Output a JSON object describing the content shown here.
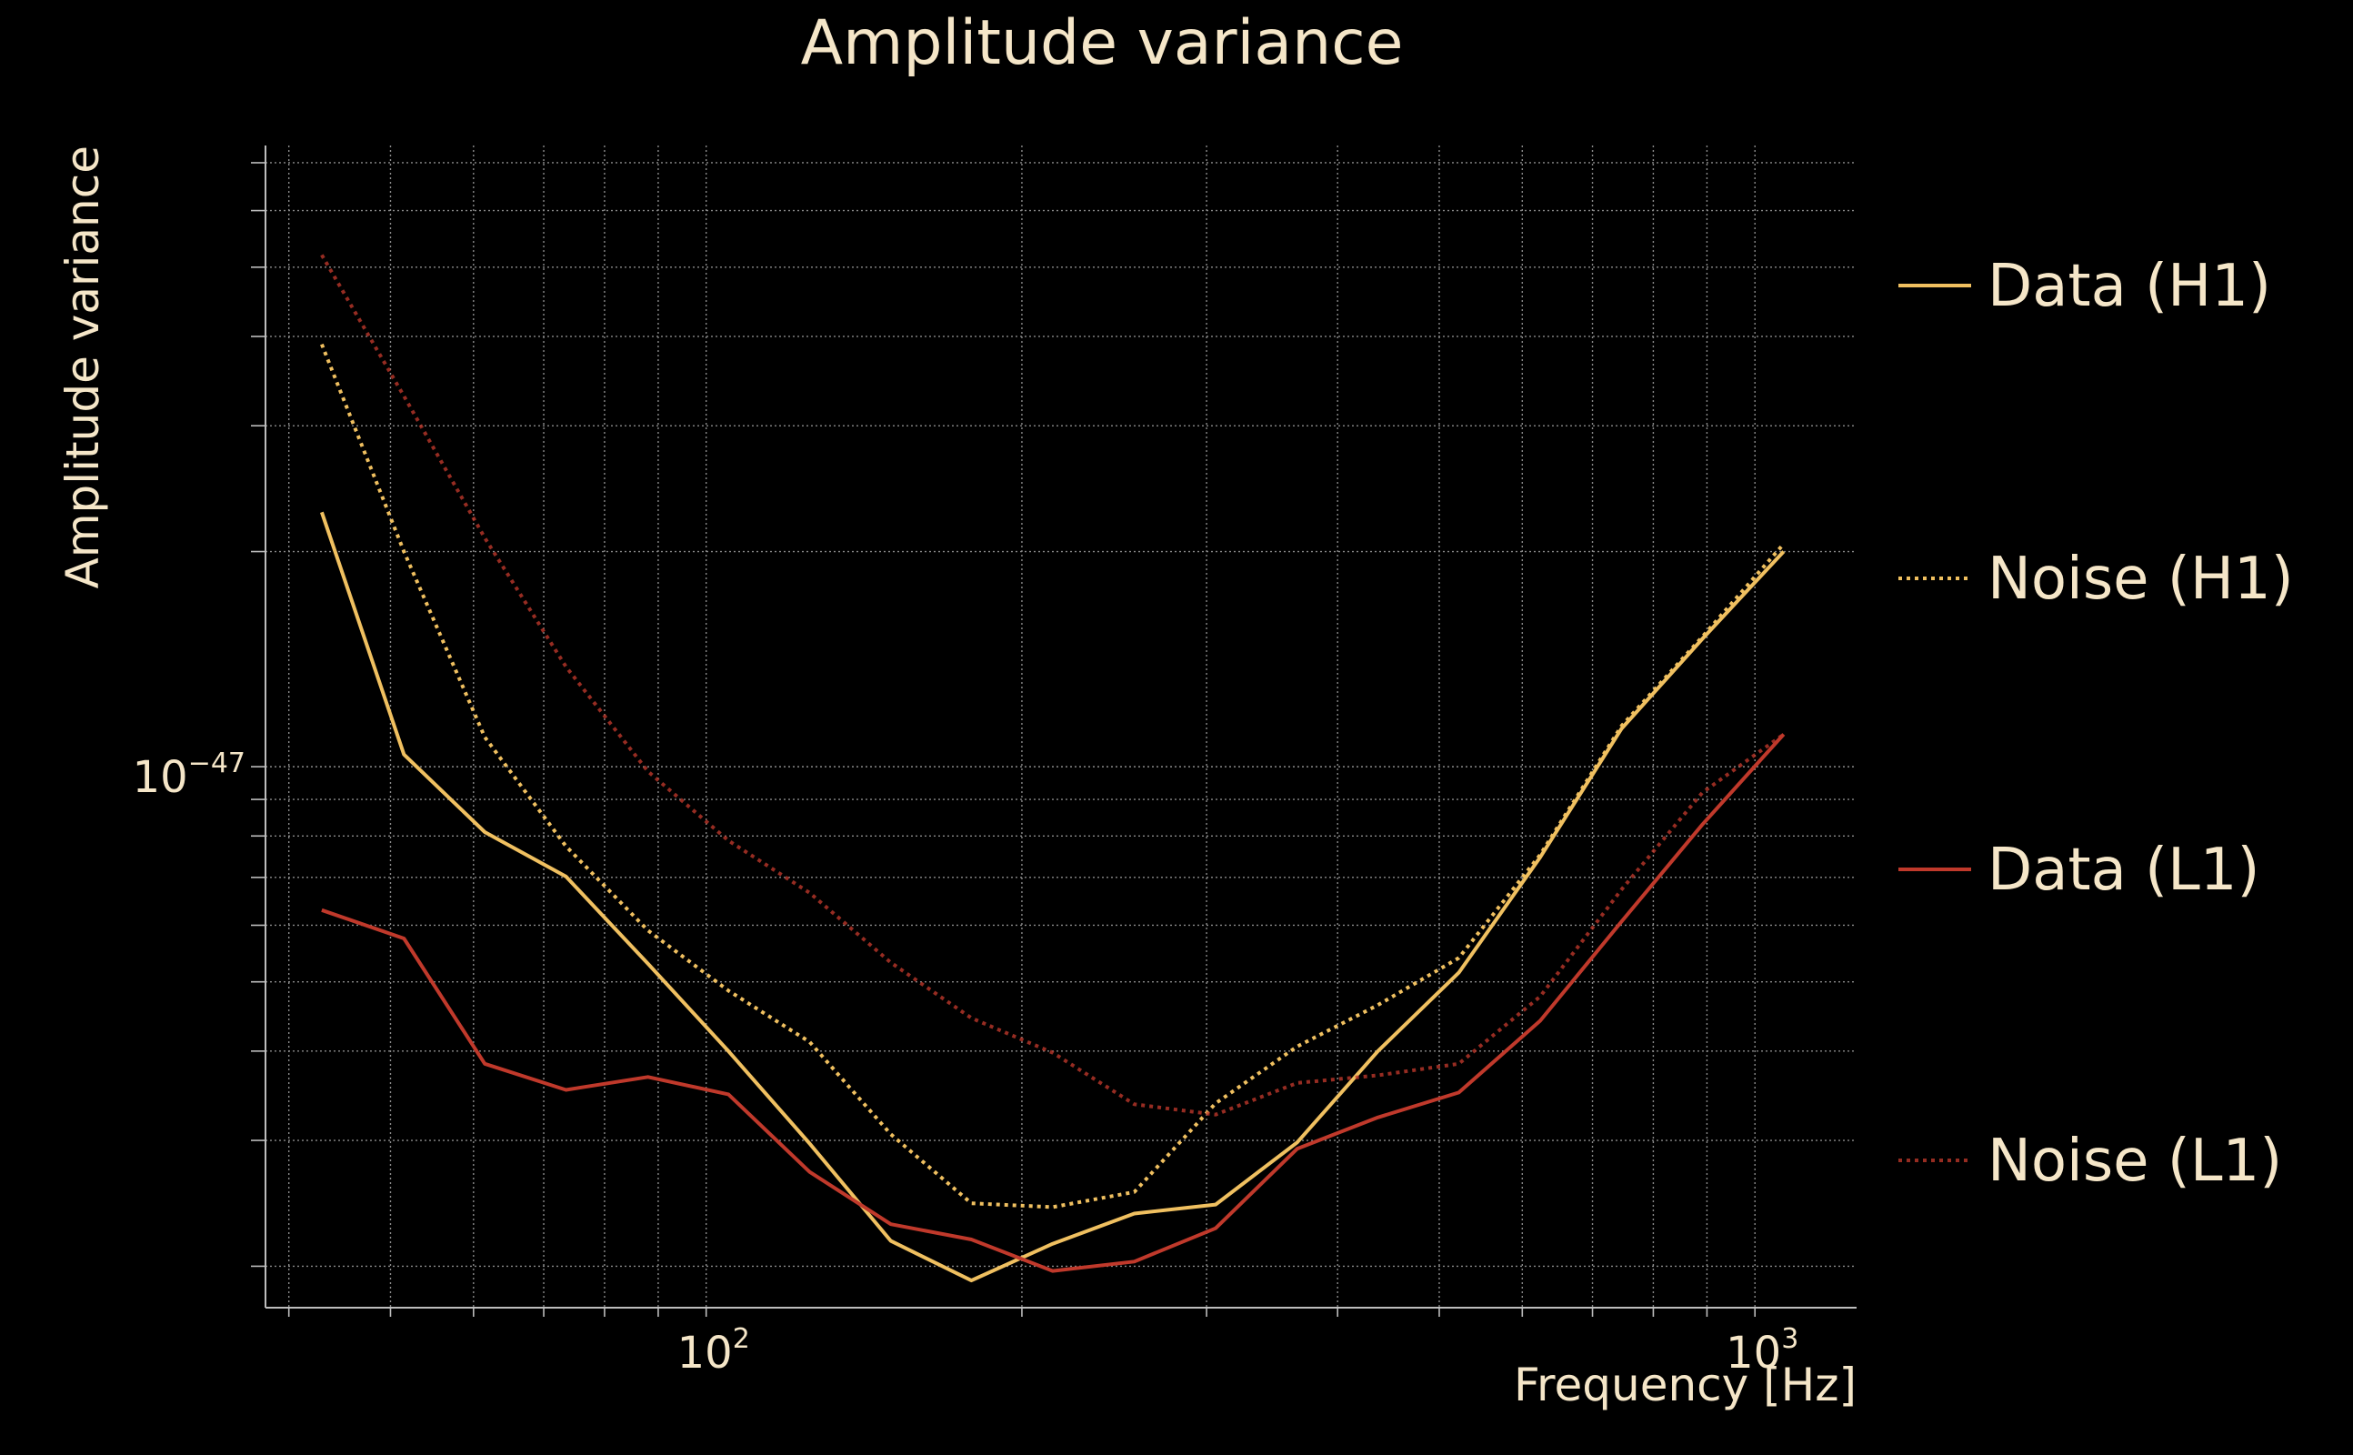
{
  "colors": {
    "background": "#000000",
    "text": "#f5e6c8",
    "grid": "#8a8a8a",
    "axis": "#bdbdbd"
  },
  "chart_data": {
    "type": "line",
    "title": "Amplitude variance",
    "xlabel": "Frequency [Hz]",
    "ylabel": "Amplitude variance",
    "xscale": "log",
    "yscale": "log",
    "xlim": [
      38,
      1250
    ],
    "ylim": [
      1.75e-48,
      7.4e-47
    ],
    "grid": true,
    "legend_placement": "right",
    "x_ticks": [
      {
        "value": 100,
        "base": "10",
        "exp": "2"
      },
      {
        "value": 1000,
        "base": "10",
        "exp": "3"
      }
    ],
    "y_ticks": [
      {
        "value": 1e-47,
        "base": "10",
        "exp": "−47"
      }
    ],
    "x_minor_ticks": [
      40,
      50,
      60,
      70,
      80,
      90,
      200,
      300,
      400,
      500,
      600,
      700,
      800,
      900
    ],
    "y_minor_ticks": [
      2e-48,
      3e-48,
      4e-48,
      5e-48,
      6e-48,
      7e-48,
      8e-48,
      9e-48,
      2e-47,
      3e-47,
      4e-47,
      5e-47,
      6e-47,
      7e-47
    ],
    "x": [
      43,
      51.5,
      61.5,
      73.5,
      88,
      105,
      125.5,
      150,
      179,
      214,
      256,
      306,
      366,
      437,
      522,
      624,
      746,
      891,
      1065
    ],
    "series": [
      {
        "name": "Data (H1)",
        "color": "#f0c060",
        "dash": "solid",
        "values": [
          2.27e-47,
          1.04e-47,
          8.1e-48,
          7.02e-48,
          5.3e-48,
          4e-48,
          2.97e-48,
          2.17e-48,
          1.91e-48,
          2.15e-48,
          2.37e-48,
          2.44e-48,
          2.98e-48,
          4e-48,
          5.15e-48,
          7.47e-48,
          1.13e-47,
          1.51e-47,
          2e-47
        ],
        "opacity": 1
      },
      {
        "name": "Noise (H1)",
        "color": "#f0c060",
        "dash": "dotted",
        "values": [
          3.9e-47,
          2e-47,
          1.1e-47,
          7.74e-48,
          5.9e-48,
          4.86e-48,
          4.12e-48,
          3.06e-48,
          2.45e-48,
          2.42e-48,
          2.54e-48,
          3.38e-48,
          4.06e-48,
          4.64e-48,
          5.4e-48,
          7.53e-48,
          1.14e-47,
          1.52e-47,
          2.05e-47
        ],
        "opacity": 1
      },
      {
        "name": "Data (L1)",
        "color": "#c0392b",
        "dash": "solid",
        "values": [
          6.3e-48,
          5.75e-48,
          3.84e-48,
          3.53e-48,
          3.68e-48,
          3.48e-48,
          2.71e-48,
          2.29e-48,
          2.18e-48,
          1.97e-48,
          2.03e-48,
          2.26e-48,
          2.92e-48,
          3.23e-48,
          3.5e-48,
          4.41e-48,
          6.07e-48,
          8.3e-48,
          1.11e-47
        ],
        "opacity": 1
      },
      {
        "name": "Noise (L1)",
        "color": "#c0392b",
        "dash": "dotted",
        "values": [
          5.2e-47,
          3.3e-47,
          2.09e-47,
          1.38e-47,
          9.85e-48,
          7.88e-48,
          6.66e-48,
          5.32e-48,
          4.45e-48,
          3.98e-48,
          3.37e-48,
          3.26e-48,
          3.61e-48,
          3.7e-48,
          3.84e-48,
          4.77e-48,
          6.73e-48,
          9.2e-48,
          1.11e-47
        ],
        "opacity": 0.78
      }
    ]
  }
}
